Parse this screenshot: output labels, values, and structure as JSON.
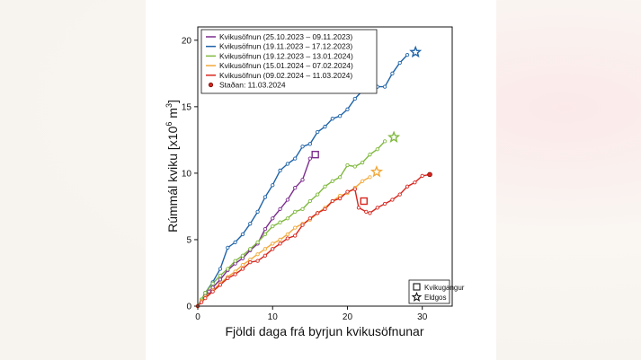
{
  "chart_data": {
    "type": "line",
    "xlabel": "Fjöldi daga frá byrjun kvikusöfnunar",
    "ylabel_main": "Rúmmál kviku [x10",
    "ylabel_sup": "6",
    "ylabel_unit": " m",
    "ylabel_sup2": "3",
    "ylabel_end": "]",
    "xlim": [
      0,
      34
    ],
    "ylim": [
      0,
      21
    ],
    "x_ticks": [
      0,
      10,
      20,
      30
    ],
    "y_ticks": [
      0,
      5,
      10,
      15,
      20
    ],
    "grid": false,
    "legend_position": "top-left",
    "series": [
      {
        "name": "Kvikusöfnun (25.10.2023 – 09.11.2023)",
        "color": "#7b2c8e",
        "x": [
          0,
          0.5,
          1,
          1.5,
          2,
          3,
          4,
          5,
          6,
          7,
          8,
          9,
          10,
          11,
          12,
          13,
          14,
          15
        ],
        "y": [
          0,
          0.4,
          0.8,
          1.1,
          1.4,
          2.0,
          2.7,
          3.2,
          3.6,
          4.2,
          4.7,
          5.8,
          6.6,
          7.3,
          8.0,
          8.9,
          9.5,
          11.1
        ],
        "event": {
          "type": "kvikugangur",
          "x": 15.7,
          "y": 11.4
        }
      },
      {
        "name": "Kvikusöfnun (19.11.2023 – 17.12.2023)",
        "color": "#1f63a8",
        "x": [
          0,
          0.5,
          1,
          2,
          3,
          4,
          5,
          6,
          7,
          8,
          9,
          10,
          11,
          12,
          13,
          14,
          15,
          16,
          17,
          18,
          19,
          20,
          21,
          22,
          23,
          24,
          25,
          26,
          27,
          28
        ],
        "y": [
          0,
          0.5,
          1.0,
          1.8,
          2.8,
          4.4,
          4.8,
          5.4,
          6.2,
          7.1,
          8.2,
          9.1,
          10.2,
          10.7,
          11.1,
          12.0,
          12.2,
          13.1,
          13.5,
          14.1,
          14.3,
          14.8,
          15.6,
          16.2,
          16.5,
          16.5,
          16.5,
          17.5,
          18.3,
          18.9
        ],
        "event": {
          "type": "eldgos",
          "x": 29.1,
          "y": 19.1
        }
      },
      {
        "name": "Kvikusöfnun (19.12.2023 – 13.01.2024)",
        "color": "#7fb83d",
        "x": [
          0,
          0.5,
          1,
          2,
          3,
          4,
          5,
          6,
          7,
          8,
          9,
          10,
          11,
          12,
          13,
          14,
          15,
          16,
          17,
          18,
          19,
          20,
          21,
          22,
          23,
          24,
          25
        ],
        "y": [
          0,
          0.5,
          1.0,
          1.7,
          2.3,
          2.8,
          3.4,
          3.8,
          4.3,
          4.8,
          5.4,
          6.0,
          6.3,
          6.6,
          7.1,
          7.3,
          7.9,
          8.4,
          9.0,
          9.4,
          9.7,
          10.6,
          10.5,
          10.8,
          11.4,
          11.8,
          12.4
        ],
        "event": {
          "type": "eldgos",
          "x": 26.2,
          "y": 12.7
        }
      },
      {
        "name": "Kvikusöfnun (15.01.2024 – 07.02.2024)",
        "color": "#f2a93b",
        "x": [
          0,
          0.5,
          1,
          2,
          3,
          4,
          5,
          6,
          7,
          8,
          9,
          10,
          11,
          12,
          13,
          14,
          15,
          16,
          17,
          18,
          19,
          20,
          21,
          22,
          23
        ],
        "y": [
          0,
          0.4,
          0.7,
          1.2,
          1.7,
          2.2,
          2.6,
          3.1,
          3.5,
          3.9,
          4.3,
          4.7,
          5.0,
          5.4,
          5.9,
          6.2,
          6.5,
          7.0,
          7.4,
          7.9,
          8.3,
          8.5,
          8.9,
          9.4,
          9.7
        ],
        "event": {
          "type": "eldgos",
          "x": 23.9,
          "y": 10.1
        }
      },
      {
        "name": "Kvikusöfnun (09.02.2024 – 11.03.2024)",
        "color": "#d7261e",
        "x": [
          0,
          0.5,
          1,
          2,
          3,
          4,
          5,
          6,
          7,
          8,
          9,
          10,
          11,
          12,
          13,
          14,
          15,
          16,
          17,
          18,
          19,
          20,
          21,
          21.5,
          22.5,
          23,
          24,
          25,
          26,
          27,
          28,
          29,
          30,
          31
        ],
        "y": [
          0,
          0.3,
          0.6,
          1.1,
          1.6,
          2.1,
          2.4,
          2.8,
          3.3,
          3.4,
          3.8,
          4.3,
          4.7,
          5.1,
          5.3,
          6.1,
          6.6,
          7.0,
          7.3,
          7.9,
          8.1,
          8.6,
          8.8,
          7.4,
          7.1,
          7.0,
          7.4,
          7.7,
          8.0,
          8.4,
          9.0,
          9.3,
          9.8,
          9.9
        ],
        "event": {
          "type": "kvikugangur",
          "x": 22.2,
          "y": 7.9
        }
      }
    ],
    "current_status": {
      "label": "Staðan: 11.03.2024",
      "x": 31,
      "y": 9.9,
      "color": "#d7261e"
    },
    "event_legend": [
      {
        "type": "kvikugangur",
        "label": "Kvikugangur"
      },
      {
        "type": "eldgos",
        "label": "Eldgos"
      }
    ]
  }
}
